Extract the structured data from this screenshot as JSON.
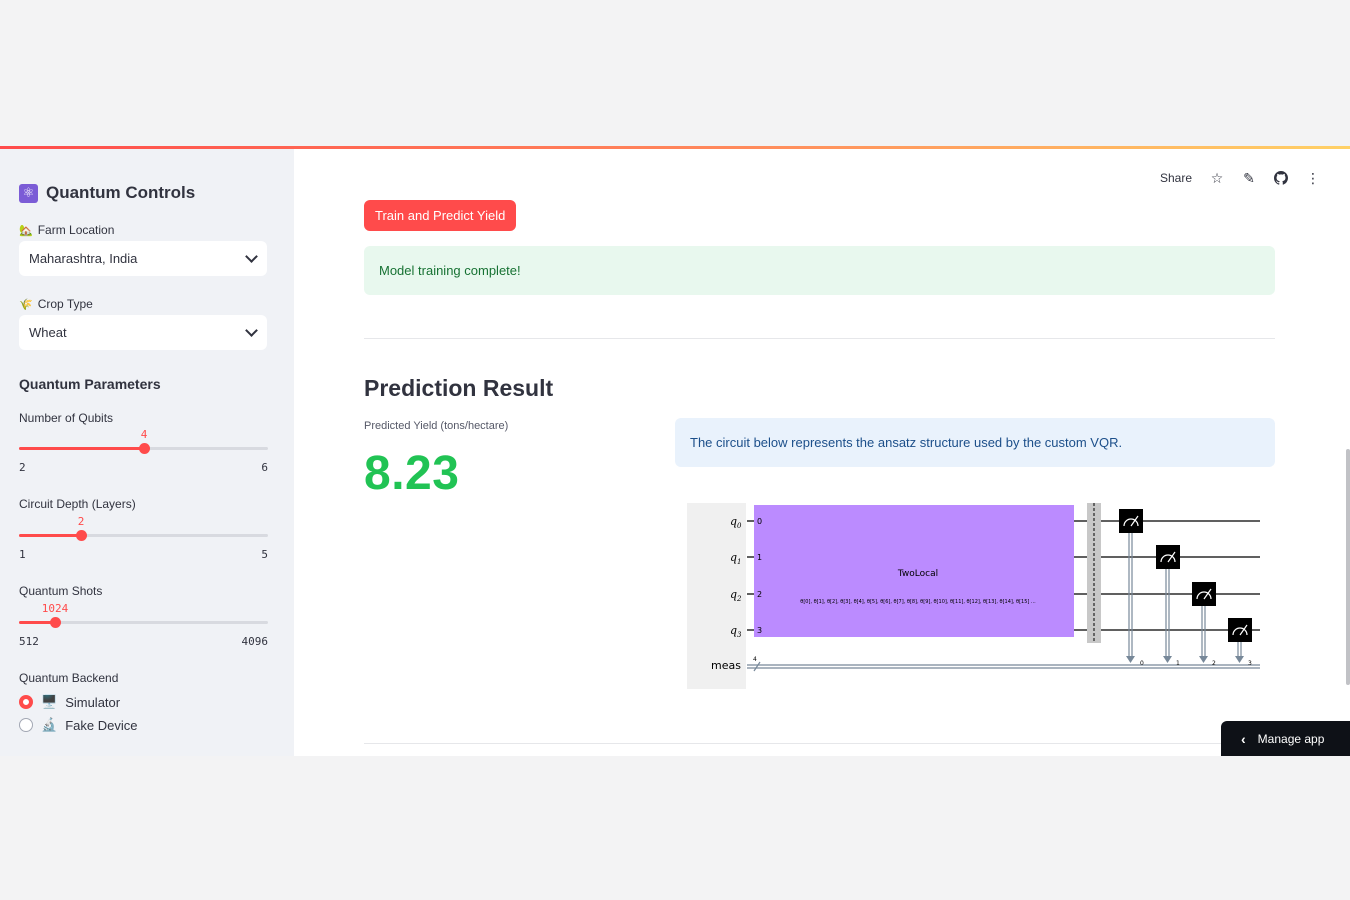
{
  "sidebar": {
    "title": "Quantum Controls",
    "title_icon": "atom-icon",
    "farm_location": {
      "label": "Farm Location",
      "icon": "farm-emoji",
      "value": "Maharashtra, India"
    },
    "crop_type": {
      "label": "Crop Type",
      "icon": "crop-emoji",
      "value": "Wheat"
    },
    "params_heading": "Quantum Parameters",
    "qubits": {
      "label": "Number of Qubits",
      "value": "4",
      "min": "2",
      "max": "6",
      "fraction": 0.5
    },
    "depth": {
      "label": "Circuit Depth (Layers)",
      "value": "2",
      "min": "1",
      "max": "5",
      "fraction": 0.25
    },
    "shots": {
      "label": "Quantum Shots",
      "value": "1024",
      "min": "512",
      "max": "4096",
      "fraction": 0.143
    },
    "backend": {
      "label": "Quantum Backend",
      "options": [
        {
          "label": "Simulator",
          "icon": "computer-emoji",
          "selected": true
        },
        {
          "label": "Fake Device",
          "icon": "microscope-emoji",
          "selected": false
        }
      ]
    }
  },
  "toolbar": {
    "share": "Share",
    "icons": [
      "star-icon",
      "edit-icon",
      "github-icon",
      "more-icon"
    ]
  },
  "main": {
    "button": "Train and Predict Yield",
    "success": "Model training complete!",
    "heading": "Prediction Result",
    "metric_label": "Predicted Yield (tons/hectare)",
    "metric_value": "8.23",
    "info": "The circuit below represents the ansatz structure used by the custom VQR."
  },
  "circuit": {
    "qubits": [
      "q",
      "q",
      "q",
      "q"
    ],
    "qubit_indices": [
      "0",
      "1",
      "2",
      "3"
    ],
    "wire_numbers": [
      "0",
      "1",
      "2",
      "3"
    ],
    "meas_label": "meas",
    "meas_count": "4",
    "gate_name": "TwoLocal",
    "gate_params": "θ[0], θ[1], θ[2], θ[3], θ[4], θ[5], θ[6], θ[7], θ[8], θ[9], θ[10], θ[11], θ[12], θ[13], θ[14], θ[15] ...",
    "classical_bits": [
      "0",
      "1",
      "2",
      "3"
    ],
    "colors": {
      "gate": "#bb8bff",
      "label_bg": "#f0f0f0",
      "barrier": "#c8c8c8"
    }
  },
  "manage_app": "Manage app"
}
